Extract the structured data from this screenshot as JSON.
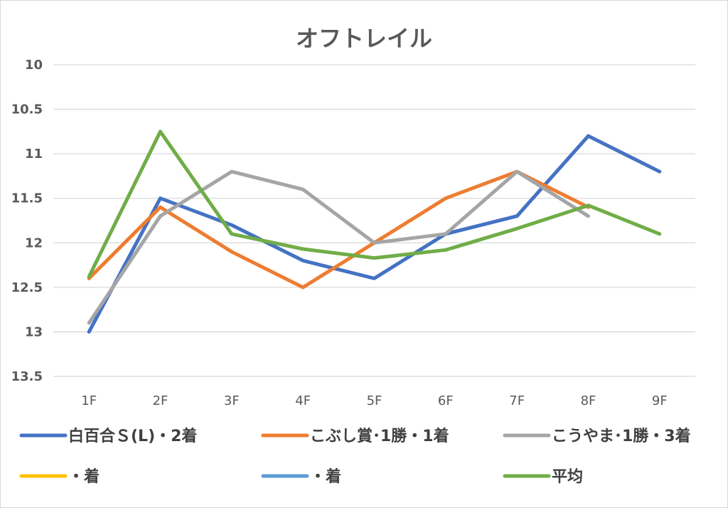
{
  "chart_data": {
    "type": "line",
    "title": "オフトレイル",
    "xlabel": "",
    "ylabel": "",
    "categories": [
      "1F",
      "2F",
      "3F",
      "4F",
      "5F",
      "6F",
      "7F",
      "8F",
      "9F"
    ],
    "y_axis": {
      "min": 10,
      "max": 13.5,
      "step": 0.5,
      "reversed": true,
      "tick_labels": [
        "10",
        "10.5",
        "11",
        "11.5",
        "12",
        "12.5",
        "13",
        "13.5"
      ]
    },
    "grid": true,
    "legend_position": "bottom",
    "series": [
      {
        "name": "白百合Ｓ(L)・2着",
        "color": "#4472c4",
        "values": [
          13.0,
          11.5,
          11.8,
          12.2,
          12.4,
          11.9,
          11.7,
          10.8,
          11.2
        ]
      },
      {
        "name": "こぶし賞･1勝・1着",
        "color": "#ed7d31",
        "values": [
          12.4,
          11.6,
          12.1,
          12.5,
          12.0,
          11.5,
          11.2,
          11.6,
          null
        ]
      },
      {
        "name": "こうやま･1勝・3着",
        "color": "#a5a5a5",
        "values": [
          12.9,
          11.7,
          11.2,
          11.4,
          12.0,
          11.9,
          11.2,
          11.7,
          null
        ]
      },
      {
        "name": "・着",
        "color": "#ffc000",
        "values": [
          null,
          null,
          null,
          null,
          null,
          null,
          null,
          null,
          null
        ]
      },
      {
        "name": "・着",
        "color": "#5b9bd5",
        "values": [
          null,
          null,
          null,
          null,
          null,
          null,
          null,
          null,
          null
        ]
      },
      {
        "name": "平均",
        "color": "#70ad47",
        "values": [
          12.38,
          10.75,
          11.9,
          12.07,
          12.17,
          12.08,
          11.84,
          11.58,
          11.9
        ]
      }
    ]
  }
}
